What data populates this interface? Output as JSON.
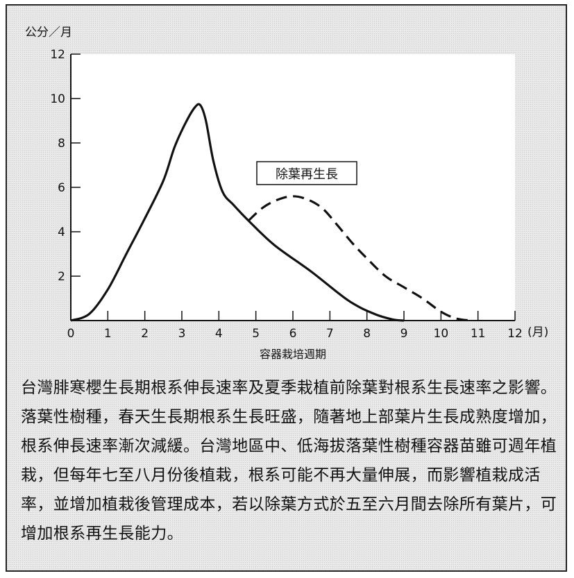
{
  "chart_data": {
    "type": "line",
    "ylabel": "公分／月",
    "xlabel": "容器栽培週期",
    "x_unit": "(月)",
    "xlim": [
      0,
      12
    ],
    "ylim": [
      0,
      12
    ],
    "x_ticks": [
      0,
      1,
      2,
      3,
      4,
      5,
      6,
      7,
      8,
      9,
      10,
      11,
      12
    ],
    "y_ticks": [
      2,
      4,
      6,
      8,
      10,
      12
    ],
    "annotation": "除葉再生長",
    "series": [
      {
        "style": "solid",
        "x": [
          0,
          0.5,
          1,
          1.5,
          2,
          2.5,
          2.8,
          3.1,
          3.35,
          3.5,
          3.65,
          3.85,
          4.1,
          4.4,
          4.8,
          5.5,
          6.5,
          7.5,
          8.2,
          8.7,
          9.0
        ],
        "y": [
          0,
          0.3,
          1.4,
          3.0,
          4.6,
          6.3,
          7.8,
          8.9,
          9.6,
          9.7,
          9.0,
          7.2,
          5.8,
          5.2,
          4.5,
          3.4,
          2.2,
          0.9,
          0.3,
          0.05,
          0
        ]
      },
      {
        "style": "dashed",
        "x": [
          4.8,
          5.2,
          5.6,
          6.0,
          6.4,
          6.8,
          7.2,
          7.6,
          8.0,
          8.5,
          9.0,
          9.5,
          10.0,
          10.4,
          10.8
        ],
        "y": [
          4.5,
          5.1,
          5.45,
          5.6,
          5.45,
          5.05,
          4.3,
          3.5,
          2.8,
          2.0,
          1.5,
          1.0,
          0.4,
          0.1,
          0
        ]
      }
    ]
  },
  "caption": "台灣腓寒櫻生長期根系伸長速率及夏季栽植前除葉對根系生長速率之影響。落葉性樹種，春天生長期根系生長旺盛，隨著地上部葉片生長成熟度增加，根系伸長速率漸次減緩。台灣地區中、低海拔落葉性樹種容器苗雖可週年植栽，但每年七至八月份後植栽，根系可能不再大量伸展，而影響植栽成活率，並增加植栽後管理成本，若以除葉方式於五至六月間去除所有葉片，可增加根系再生長能力。"
}
